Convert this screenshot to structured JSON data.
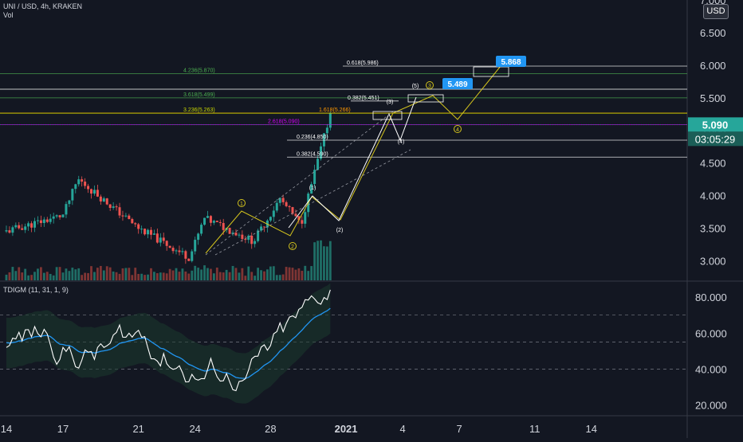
{
  "symbol": {
    "title": "UNI / USD, 4h, KRAKEN",
    "volume_label": "Vol",
    "currency_badge": "USD"
  },
  "colors": {
    "background": "#131722",
    "grid": "#1e222d",
    "candle_up": "#26a69a",
    "candle_down": "#ef5350",
    "vol_up": "#1f6e66",
    "vol_down": "#7f3534",
    "fib_green": "#4caf50",
    "fib_yellow": "#c8d600",
    "fib_magenta": "#d500f9",
    "wave_yellow": "#d4c41d",
    "callout_blue": "#2196f3",
    "last_price": "#26a69a",
    "indicator_white": "#ffffff",
    "indicator_blue": "#2196f3"
  },
  "chart_data": [
    {
      "type": "candlestick",
      "title": "UNI / USD, 4h, KRAKEN",
      "x_ticks": [
        "14",
        "17",
        "21",
        "24",
        "28",
        "2021",
        "4",
        "7",
        "11",
        "14"
      ],
      "y_ticks": [
        "7.000",
        "6.500",
        "6.000",
        "5.500",
        "5.000",
        "4.500",
        "4.000",
        "3.500",
        "3.000"
      ],
      "ylim": [
        2.7,
        7.0
      ],
      "grid": false,
      "price_axis_currency": "USD",
      "last_price": "5.090",
      "countdown": "03:05:29",
      "anchors": {
        "start": [
          14,
          3.45
        ],
        "p1": [
          17,
          3.7
        ],
        "p2": [
          17.8,
          4.25
        ],
        "p3": [
          21,
          3.5
        ],
        "p4": [
          23.7,
          3.05
        ],
        "w1": [
          24.5,
          3.65
        ],
        "w2": [
          27.1,
          3.3
        ],
        "w1b": [
          28.5,
          3.95
        ],
        "w2b": [
          29.6,
          3.55
        ],
        "end": [
          31.2,
          5.3
        ]
      },
      "candles": [],
      "fib_levels": [
        {
          "label": "4.236(5.870)",
          "value": 5.87,
          "color": "#4caf50"
        },
        {
          "label": "0.618(5.986)",
          "value": 5.986,
          "color": "#ffffff"
        },
        {
          "label": "3.618(5.499)",
          "value": 5.499,
          "color": "#4caf50"
        },
        {
          "label": "0.382(5.451)",
          "value": 5.451,
          "color": "#ffffff"
        },
        {
          "label": "1.618(5.266)",
          "value": 5.266,
          "color": "#ff9800"
        },
        {
          "label": "3.236(5.263)",
          "value": 5.263,
          "color": "#c8d600"
        },
        {
          "label": "2.618(5.090)",
          "value": 5.09,
          "color": "#d500f9"
        },
        {
          "label": "0.236(4.850)",
          "value": 4.85,
          "color": "#ffffff"
        },
        {
          "label": "0.382(4.590)",
          "value": 4.59,
          "color": "#ffffff"
        }
      ],
      "callouts": [
        {
          "label": "5.868",
          "value": 5.868
        },
        {
          "label": "5.489",
          "value": 5.489
        }
      ],
      "wave_labels": [
        "1",
        "2",
        "3",
        "4",
        "5",
        "(1)",
        "(2)",
        "(3)",
        "(4)",
        "(5)"
      ]
    },
    {
      "type": "line",
      "title": "TDIGM (11, 31, 1, 9)",
      "y_ticks": [
        "80.000",
        "60.000",
        "40.000",
        "20.000"
      ],
      "ylim": [
        15,
        88
      ],
      "reference_lines": [
        70,
        55,
        40
      ],
      "series": []
    }
  ]
}
